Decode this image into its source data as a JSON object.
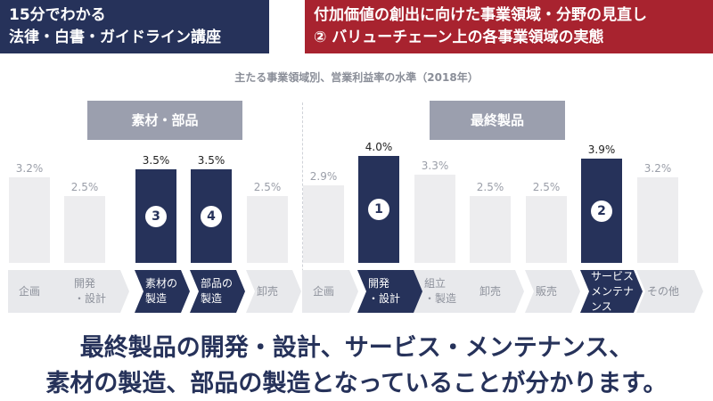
{
  "header": {
    "left_line1": "15分でわかる",
    "left_line2": "法律・白書・ガイドライン講座",
    "right_line1": "付加価値の創出に向けた事業領域・分野の見直し",
    "right_line2": "② バリューチェーン上の各事業領域の実態"
  },
  "colors": {
    "navy": "#26325a",
    "red": "#a8232f",
    "group_gray": "#9b9fae",
    "bar_gray": "#ededef"
  },
  "chart_data": {
    "type": "bar",
    "title": "主たる事業領域別、営業利益率の水準（2018年）",
    "ylim": [
      0,
      4.7
    ],
    "groups": [
      {
        "label": "素材・部品",
        "categories": [
          "企画",
          "開発\n・設計",
          "素材の\n製造",
          "部品の\n製造",
          "卸売"
        ],
        "values": [
          3.2,
          2.5,
          3.5,
          3.5,
          2.5
        ],
        "value_labels": [
          "3.2%",
          "2.5%",
          "3.5%",
          "3.5%",
          "2.5%"
        ],
        "highlighted": [
          false,
          false,
          true,
          true,
          false
        ],
        "markers": [
          "",
          "",
          "3",
          "4",
          ""
        ]
      },
      {
        "label": "最終製品",
        "categories": [
          "企画",
          "開発\n・設計",
          "組立\n・製造",
          "卸売",
          "販売",
          "サービス\nメンテナンス",
          "その他"
        ],
        "values": [
          2.9,
          4.0,
          3.3,
          2.5,
          2.5,
          3.9,
          3.2
        ],
        "value_labels": [
          "2.9%",
          "4.0%",
          "3.3%",
          "2.5%",
          "2.5%",
          "3.9%",
          "3.2%"
        ],
        "highlighted": [
          false,
          true,
          false,
          false,
          false,
          true,
          false
        ],
        "markers": [
          "",
          "1",
          "",
          "",
          "",
          "2",
          ""
        ]
      }
    ]
  },
  "bottom": {
    "line1": "最終製品の開発・設計、サービス・メンテナンス、",
    "line2": "素材の製造、部品の製造となっていることが分かります。"
  }
}
